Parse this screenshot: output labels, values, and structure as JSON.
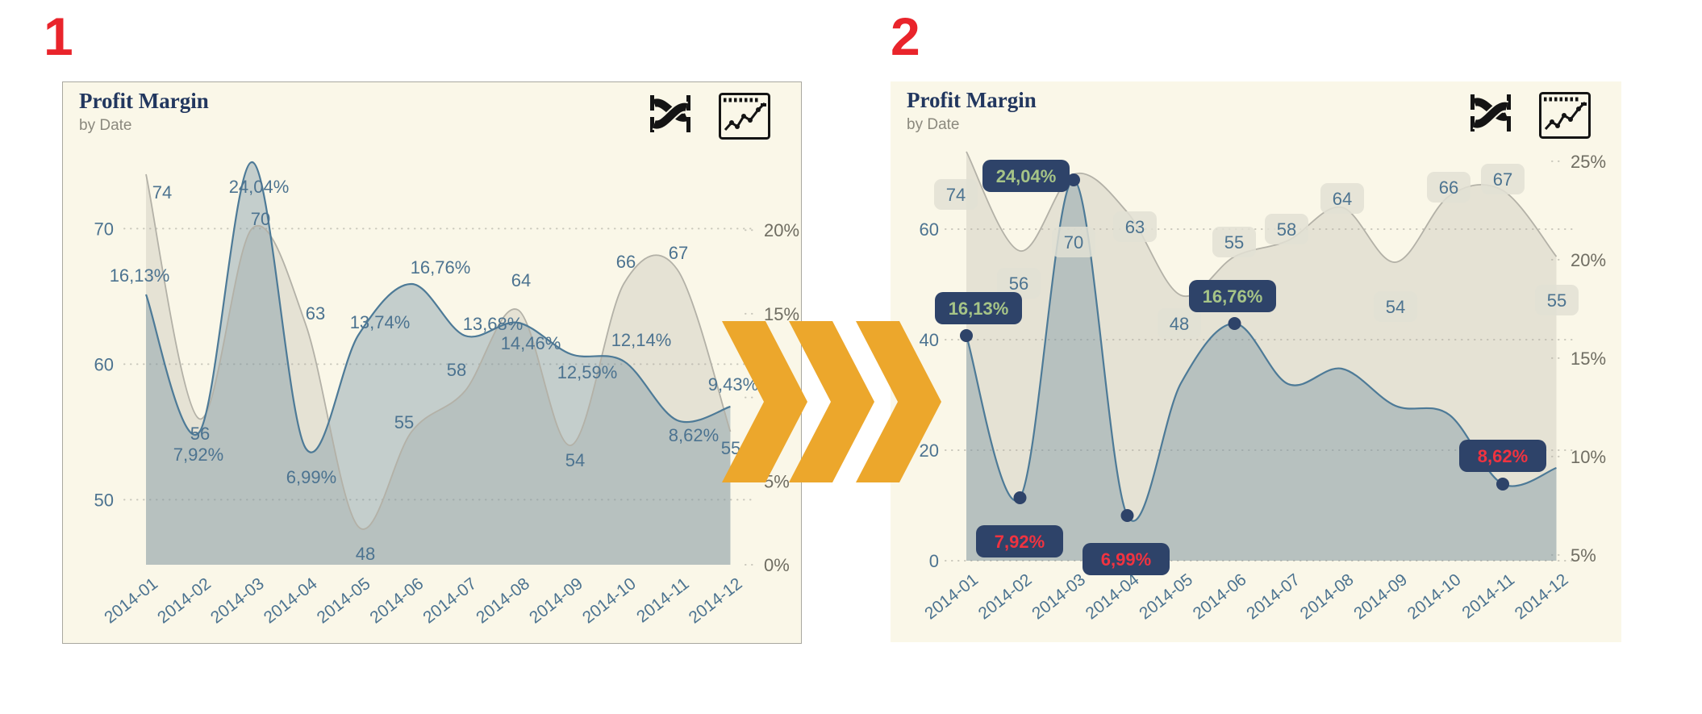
{
  "steps": [
    "1",
    "2"
  ],
  "colors": {
    "page_bg": "#ffffff",
    "card_bg": "#faf7e8",
    "card_border": "#a9a89f",
    "accent_red": "#e9242b",
    "chevron_orange": "#eca72c",
    "title_navy": "#22375f",
    "subtitle_gray": "#8b897e",
    "blue_line": "#4d7a97",
    "blue_fill": "rgba(109,139,157,0.38)",
    "gray_line": "#b3b1a7",
    "gray_fill": "rgba(176,174,161,0.28)",
    "label_blue": "#4c7390",
    "axis_right_gray": "#6f6d62",
    "grid_dot": "#c9c7bb",
    "navy_box": "#2e4369",
    "box_green_text": "#a6c487",
    "box_red_text": "#f03340",
    "gray_box": "rgba(226,224,212,0.85)",
    "marker_navy": "#2e4369"
  },
  "cards": [
    {
      "title": "Profit Margin",
      "subtitle": "by Date",
      "icons": [
        "ribbon-chart-icon",
        "line-chart-window-icon"
      ]
    },
    {
      "title": "Profit Margin",
      "subtitle": "by Date",
      "icons": [
        "ribbon-chart-icon",
        "line-chart-window-icon"
      ]
    }
  ],
  "chart_data": [
    {
      "type": "area",
      "variant": "before",
      "title": "Profit Margin",
      "subtitle": "by Date",
      "grid": "dotted-horizontal",
      "legend": "none",
      "categories": [
        "2014-01",
        "2014-02",
        "2014-03",
        "2014-04",
        "2014-05",
        "2014-06",
        "2014-07",
        "2014-08",
        "2014-09",
        "2014-10",
        "2014-11",
        "2014-12"
      ],
      "series": [
        {
          "name": "quantity",
          "axis": "left",
          "values": [
            74,
            56,
            70,
            63,
            48,
            55,
            58,
            64,
            54,
            66,
            67,
            55
          ],
          "labels": [
            "74",
            "56",
            "70",
            "63",
            "48",
            "55",
            "58",
            "64",
            "54",
            "66",
            "67",
            "55"
          ]
        },
        {
          "name": "profit-margin-pct",
          "axis": "right",
          "values": [
            16.13,
            7.92,
            24.04,
            6.99,
            13.74,
            16.76,
            13.68,
            14.46,
            12.59,
            12.14,
            8.62,
            9.43
          ],
          "labels": [
            "16,13%",
            "7,92%",
            "24,04%",
            "6,99%",
            "13,74%",
            "16,76%",
            "13,68%",
            "14,46%",
            "12,59%",
            "12,14%",
            "8,62%",
            "9,43%"
          ]
        }
      ],
      "left_axis": {
        "ticks": [
          {
            "label": "70",
            "value": 70
          },
          {
            "label": "60",
            "value": 60
          },
          {
            "label": "50",
            "value": 50
          }
        ]
      },
      "right_axis": {
        "ticks": [
          {
            "label": "20%",
            "value": 20
          },
          {
            "label": "15%",
            "value": 15
          },
          {
            "label": "10%",
            "value": 10
          },
          {
            "label": "5%",
            "value": 5
          },
          {
            "label": "0%",
            "value": 0
          }
        ]
      },
      "markers": [],
      "highlights": []
    },
    {
      "type": "area",
      "variant": "after",
      "title": "Profit Margin",
      "subtitle": "by Date",
      "grid": "dotted-horizontal",
      "legend": "none",
      "categories": [
        "2014-01",
        "2014-02",
        "2014-03",
        "2014-04",
        "2014-05",
        "2014-06",
        "2014-07",
        "2014-08",
        "2014-09",
        "2014-10",
        "2014-11",
        "2014-12"
      ],
      "series": [
        {
          "name": "quantity",
          "axis": "left",
          "values": [
            74,
            56,
            70,
            63,
            48,
            55,
            58,
            64,
            54,
            66,
            67,
            55
          ],
          "labels": [
            "74",
            "56",
            "70",
            "63",
            "48",
            "55",
            "58",
            "64",
            "54",
            "66",
            "67",
            "55"
          ],
          "label_style": "gray-box"
        },
        {
          "name": "profit-margin-pct",
          "axis": "right",
          "values": [
            16.13,
            7.92,
            24.04,
            6.99,
            13.74,
            16.76,
            13.68,
            14.46,
            12.59,
            12.14,
            8.62,
            9.43
          ],
          "labels": [
            "16,13%",
            "7,92%",
            "24,04%",
            "6,99%",
            "13,74%",
            "16,76%",
            "13,68%",
            "14,46%",
            "12,59%",
            "12,14%",
            "8,62%",
            "9,43%"
          ],
          "label_style": "navy-box-extremes-only"
        }
      ],
      "left_axis": {
        "ticks": [
          {
            "label": "60",
            "value": 60
          },
          {
            "label": "40",
            "value": 40
          },
          {
            "label": "20",
            "value": 20
          },
          {
            "label": "0",
            "value": 0
          }
        ]
      },
      "right_axis": {
        "ticks": [
          {
            "label": "25%",
            "value": 25
          },
          {
            "label": "20%",
            "value": 20
          },
          {
            "label": "15%",
            "value": 15
          },
          {
            "label": "10%",
            "value": 10
          },
          {
            "label": "5%",
            "value": 5
          }
        ]
      },
      "markers": [
        0,
        1,
        2,
        3,
        5,
        10
      ],
      "highlights": [
        {
          "index": 0,
          "text": "16,13%",
          "sentiment": "high",
          "text_color": "green"
        },
        {
          "index": 2,
          "text": "24,04%",
          "sentiment": "high",
          "text_color": "green"
        },
        {
          "index": 5,
          "text": "16,76%",
          "sentiment": "high",
          "text_color": "green"
        },
        {
          "index": 1,
          "text": "7,92%",
          "sentiment": "low",
          "text_color": "red"
        },
        {
          "index": 3,
          "text": "6,99%",
          "sentiment": "low",
          "text_color": "red"
        },
        {
          "index": 10,
          "text": "8,62%",
          "sentiment": "low",
          "text_color": "red"
        }
      ]
    }
  ]
}
